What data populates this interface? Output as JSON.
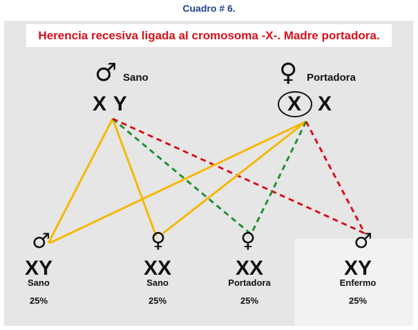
{
  "caption": "Cuadro # 6.",
  "title": "Herencia recesiva ligada al cromosoma -X-. Madre portadora.",
  "colors": {
    "title": "#d5101a",
    "caption": "#1f3f88",
    "normal_line": "#f5b800",
    "carrier_line": "#1f8f2f",
    "affected_line": "#d8101a"
  },
  "father": {
    "symbol_icon": "male-symbol-icon",
    "symbol": "♂",
    "label": "Sano",
    "genotype": "X Y"
  },
  "mother": {
    "symbol_icon": "female-symbol-icon",
    "symbol": "♀",
    "label": "Portadora",
    "allele_marked": "X",
    "allele_other": "X"
  },
  "children": [
    {
      "symbol": "♂",
      "genotype": "XY",
      "label": "Sano",
      "percent": "25%"
    },
    {
      "symbol": "♀",
      "genotype": "XX",
      "label": "Sano",
      "percent": "25%"
    },
    {
      "symbol": "♀",
      "genotype": "XX",
      "label": "Portadora",
      "percent": "25%"
    },
    {
      "symbol": "♂",
      "genotype": "XY",
      "label": "Enfermo",
      "percent": "25%"
    }
  ]
}
